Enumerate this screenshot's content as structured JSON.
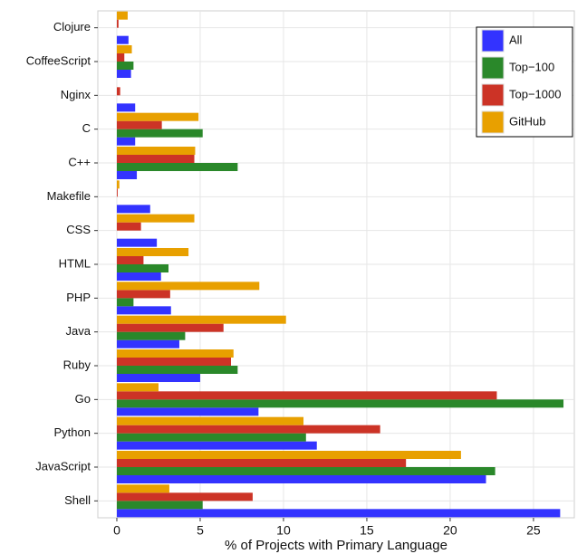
{
  "chart_data": {
    "type": "barh",
    "xlabel": "% of Projects with Primary Language",
    "categories": [
      "Clojure",
      "CoffeeScript",
      "Nginx",
      "C",
      "C++",
      "Makefile",
      "CSS",
      "HTML",
      "PHP",
      "Java",
      "Ruby",
      "Go",
      "Python",
      "JavaScript",
      "Shell"
    ],
    "series": [
      {
        "name": "All",
        "color": "#3333ff",
        "values": [
          0.7,
          0.85,
          1.1,
          1.1,
          1.2,
          2.0,
          2.4,
          2.65,
          3.25,
          3.75,
          5.0,
          8.5,
          12.0,
          22.15,
          26.6
        ]
      },
      {
        "name": "Top−100",
        "color": "#2a882a",
        "values": [
          0,
          1.0,
          0,
          5.15,
          7.25,
          0,
          0,
          3.1,
          1.0,
          4.1,
          7.25,
          26.8,
          11.35,
          22.7,
          5.15
        ]
      },
      {
        "name": "Top−1000",
        "color": "#cc3326",
        "values": [
          0.1,
          0.45,
          0.2,
          2.7,
          4.65,
          0.05,
          1.45,
          1.6,
          3.2,
          6.4,
          6.85,
          22.8,
          15.8,
          17.35,
          8.15
        ]
      },
      {
        "name": "GitHub",
        "color": "#e8a000",
        "values": [
          0.65,
          0.9,
          0,
          4.9,
          4.7,
          0.15,
          4.65,
          4.3,
          8.55,
          10.15,
          7.0,
          2.5,
          11.2,
          20.65,
          3.15
        ]
      }
    ],
    "xlim": [
      -1.14,
      27.45
    ],
    "xticks": [
      0,
      5,
      10,
      15,
      20,
      25
    ],
    "grid": true,
    "legend": "top-right"
  }
}
